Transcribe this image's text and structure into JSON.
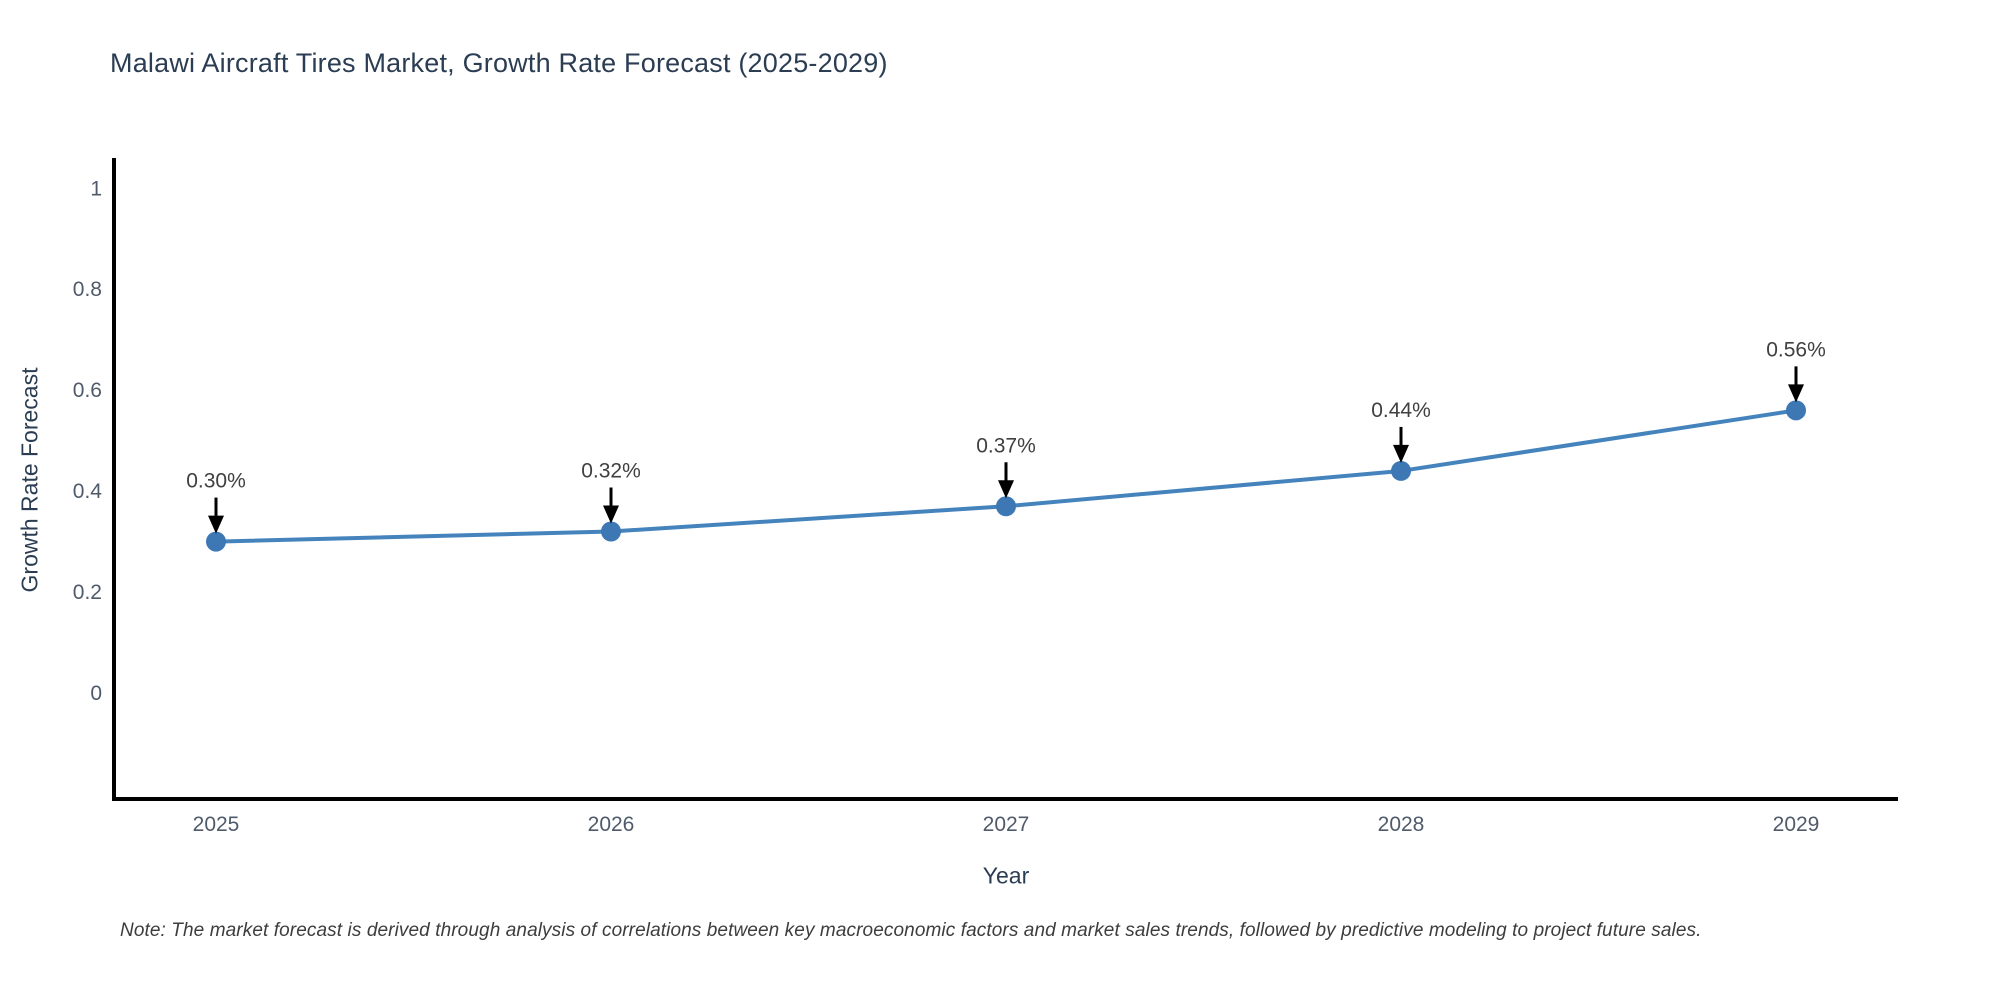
{
  "page": {
    "background": "#ffffff"
  },
  "note": "Note: The market forecast is derived through analysis of correlations between key macroeconomic factors and market sales trends, followed by predictive modeling to project future sales.",
  "chart_data": {
    "type": "line",
    "title": "Malawi Aircraft Tires Market, Growth Rate Forecast (2025-2029)",
    "xlabel": "Year",
    "ylabel": "Growth Rate Forecast",
    "categories": [
      "2025",
      "2026",
      "2027",
      "2028",
      "2029"
    ],
    "series": [
      {
        "name": "Growth Rate Forecast",
        "values": [
          0.3,
          0.32,
          0.37,
          0.44,
          0.56
        ],
        "point_labels": [
          "0.30%",
          "0.32%",
          "0.37%",
          "0.44%",
          "0.56%"
        ]
      }
    ],
    "yticks": [
      0,
      0.2,
      0.4,
      0.6,
      0.8,
      1
    ],
    "ytick_labels": [
      "0",
      "0.2",
      "0.4",
      "0.6",
      "0.8",
      "1"
    ],
    "ylim": [
      -0.21,
      1.06
    ],
    "grid": false,
    "legend": "none",
    "annotations": "black arrows pointing down from each value label to its marker",
    "colors": {
      "line": "#4583bd",
      "marker": "#3d78b5",
      "spine": "#000000",
      "tick_label": "#4f5b6b",
      "axis_title": "#2b3d52",
      "title": "#2b3d52",
      "data_label": "#404040",
      "arrow": "#000000",
      "background": "#ffffff"
    }
  }
}
